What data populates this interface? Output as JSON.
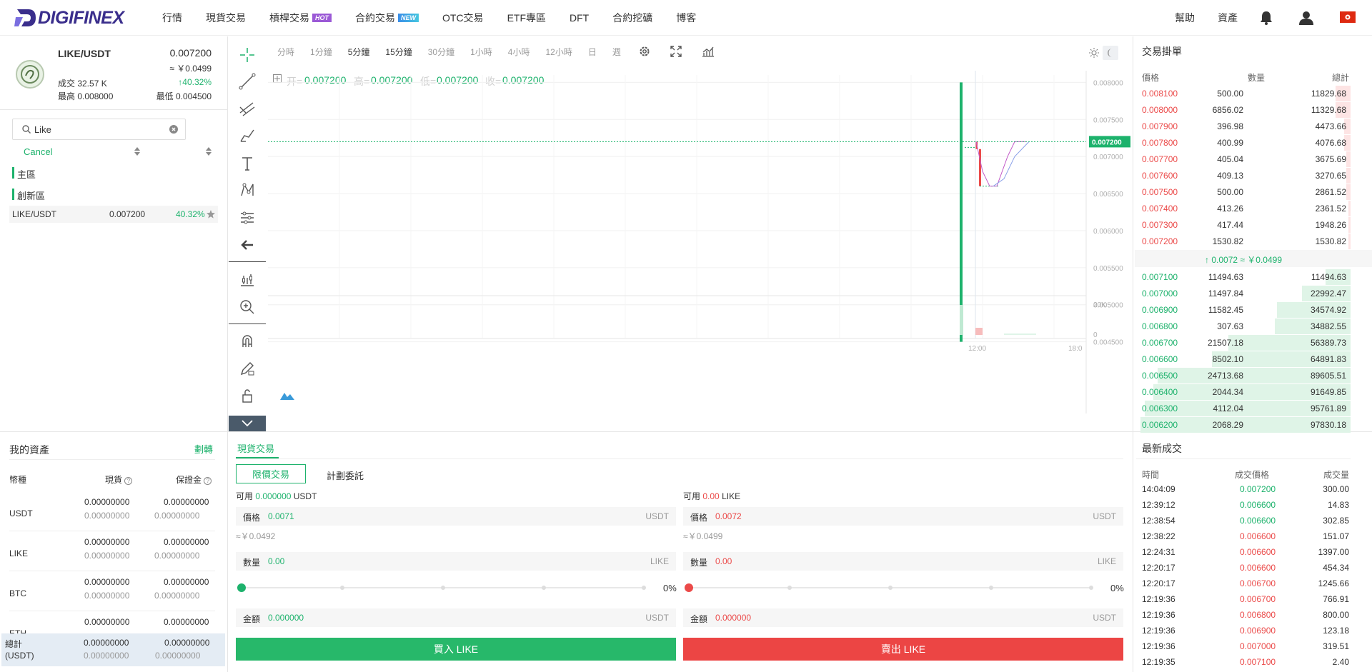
{
  "brand": {
    "name": "DIGIFINEX"
  },
  "nav": {
    "items": [
      {
        "label": "行情"
      },
      {
        "label": "現貨交易"
      },
      {
        "label": "槓桿交易",
        "badge": "HOT"
      },
      {
        "label": "合約交易",
        "badge": "NEW"
      },
      {
        "label": "OTC交易"
      },
      {
        "label": "ETF專區"
      },
      {
        "label": "DFT"
      },
      {
        "label": "合約挖礦"
      },
      {
        "label": "博客"
      }
    ],
    "right": {
      "help": "幫助",
      "assets": "資產"
    }
  },
  "pair": {
    "name": "LIKE/USDT",
    "price": "0.007200",
    "cny": "≈ ￥0.0499",
    "volume": "成交 32.57 K",
    "change": "40.32%",
    "high": "最高 0.008000",
    "low": "最低 0.004500"
  },
  "search": {
    "value": "Like",
    "cancel": "Cancel"
  },
  "zones": {
    "main": "主區",
    "innovation": "創新區"
  },
  "pairs_list": [
    {
      "pair": "LIKE/USDT",
      "price": "0.007200",
      "change": "40.32%"
    }
  ],
  "timeframes": [
    "分時",
    "1分鐘",
    "5分鐘",
    "15分鐘",
    "30分鐘",
    "1小時",
    "4小時",
    "12小時",
    "日",
    "週"
  ],
  "active_timeframe": "15分鐘",
  "ohlc": {
    "open_label": "开=",
    "open": "0.007200",
    "high_label": "高=",
    "high": "0.007200",
    "low_label": "低=",
    "low": "0.007200",
    "close_label": "收=",
    "close": "0.007200"
  },
  "chart_data": {
    "type": "candlestick",
    "price_axis": [
      "0.008000",
      "0.007500",
      "0.007000",
      "0.006500",
      "0.006000",
      "0.005500",
      "0.005000",
      "0.004500"
    ],
    "last_price_label": "0.007200",
    "volume_axis": [
      "20K",
      "0"
    ],
    "time_axis": [
      "12:00",
      "18:0"
    ],
    "ylim": [
      0.0044,
      0.0081
    ]
  },
  "orderbook": {
    "title": "交易掛單",
    "headers": {
      "price": "價格",
      "amount": "數量",
      "total": "總計"
    },
    "asks": [
      {
        "price": "0.008100",
        "amount": "500.00",
        "total": "11829.68",
        "depth": 0.07
      },
      {
        "price": "0.008000",
        "amount": "6856.02",
        "total": "11329.68",
        "depth": 0.07
      },
      {
        "price": "0.007900",
        "amount": "396.98",
        "total": "4473.66",
        "depth": 0.03
      },
      {
        "price": "0.007800",
        "amount": "400.99",
        "total": "4076.68",
        "depth": 0.03
      },
      {
        "price": "0.007700",
        "amount": "405.04",
        "total": "3675.69",
        "depth": 0.02
      },
      {
        "price": "0.007600",
        "amount": "409.13",
        "total": "3270.65",
        "depth": 0.02
      },
      {
        "price": "0.007500",
        "amount": "500.00",
        "total": "2861.52",
        "depth": 0.02
      },
      {
        "price": "0.007400",
        "amount": "413.26",
        "total": "2361.52",
        "depth": 0.01
      },
      {
        "price": "0.007300",
        "amount": "417.44",
        "total": "1948.26",
        "depth": 0.01
      },
      {
        "price": "0.007200",
        "amount": "1530.82",
        "total": "1530.82",
        "depth": 0.01
      }
    ],
    "mid": "0.0072 ≈ ￥0.0499",
    "bids": [
      {
        "price": "0.007100",
        "amount": "11494.63",
        "total": "11494.63",
        "depth": 0.12
      },
      {
        "price": "0.007000",
        "amount": "11497.84",
        "total": "22992.47",
        "depth": 0.23
      },
      {
        "price": "0.006900",
        "amount": "11582.45",
        "total": "34574.92",
        "depth": 0.35
      },
      {
        "price": "0.006800",
        "amount": "307.63",
        "total": "34882.55",
        "depth": 0.36
      },
      {
        "price": "0.006700",
        "amount": "21507.18",
        "total": "56389.73",
        "depth": 0.58
      },
      {
        "price": "0.006600",
        "amount": "8502.10",
        "total": "64891.83",
        "depth": 0.66
      },
      {
        "price": "0.006500",
        "amount": "24713.68",
        "total": "89605.51",
        "depth": 0.92
      },
      {
        "price": "0.006400",
        "amount": "2044.34",
        "total": "91649.85",
        "depth": 0.94
      },
      {
        "price": "0.006300",
        "amount": "4112.04",
        "total": "95761.89",
        "depth": 0.98
      },
      {
        "price": "0.006200",
        "amount": "2068.29",
        "total": "97830.18",
        "depth": 1.0
      }
    ]
  },
  "assets": {
    "title": "我的資產",
    "transfer": "劃轉",
    "headers": {
      "currency": "幣種",
      "spot": "現貨",
      "margin": "保證金"
    },
    "rows": [
      {
        "coin": "USDT",
        "spot1": "0.00000000",
        "spot2": "0.00000000",
        "m1": "0.00000000",
        "m2": "0.00000000"
      },
      {
        "coin": "LIKE",
        "spot1": "0.00000000",
        "spot2": "0.00000000",
        "m1": "0.00000000",
        "m2": "0.00000000"
      },
      {
        "coin": "BTC",
        "spot1": "0.00000000",
        "spot2": "0.00000000",
        "m1": "0.00000000",
        "m2": "0.00000000"
      },
      {
        "coin": "ETH",
        "spot1": "0.00000000",
        "spot2": "",
        "m1": "0.00000000",
        "m2": ""
      }
    ],
    "total": {
      "label": "總計",
      "unit": "(USDT)",
      "spot1": "0.00000000",
      "spot2": "0.00000000",
      "m1": "0.00000000",
      "m2": "0.00000000"
    }
  },
  "trade": {
    "tab": "現貨交易",
    "limit": "限價交易",
    "plan": "計劃委託",
    "buy": {
      "avail_label": "可用",
      "avail": "0.000000",
      "avail_unit": "USDT",
      "price_label": "價格",
      "price": "0.0071",
      "price_unit": "USDT",
      "cny": "≈￥0.0492",
      "amount_label": "數量",
      "amount": "0.00",
      "amount_unit": "LIKE",
      "percent": "0%",
      "total_label": "金額",
      "total": "0.000000",
      "total_unit": "USDT",
      "button": "買入 LIKE"
    },
    "sell": {
      "avail_label": "可用",
      "avail": "0.00",
      "avail_unit": "LIKE",
      "price_label": "價格",
      "price": "0.0072",
      "price_unit": "USDT",
      "cny": "≈￥0.0499",
      "amount_label": "數量",
      "amount": "0.00",
      "amount_unit": "LIKE",
      "percent": "0%",
      "total_label": "金額",
      "total": "0.000000",
      "total_unit": "USDT",
      "button": "賣出 LIKE"
    }
  },
  "trades": {
    "title": "最新成交",
    "headers": {
      "time": "時間",
      "price": "成交價格",
      "amount": "成交量"
    },
    "rows": [
      {
        "time": "14:04:09",
        "price": "0.007200",
        "amount": "300.00",
        "side": "buy"
      },
      {
        "time": "12:39:12",
        "price": "0.006600",
        "amount": "14.83",
        "side": "buy"
      },
      {
        "time": "12:38:54",
        "price": "0.006600",
        "amount": "302.85",
        "side": "buy"
      },
      {
        "time": "12:38:22",
        "price": "0.006600",
        "amount": "151.07",
        "side": "sell"
      },
      {
        "time": "12:24:31",
        "price": "0.006600",
        "amount": "1397.00",
        "side": "sell"
      },
      {
        "time": "12:20:17",
        "price": "0.006600",
        "amount": "454.34",
        "side": "sell"
      },
      {
        "time": "12:20:17",
        "price": "0.006700",
        "amount": "1245.66",
        "side": "sell"
      },
      {
        "time": "12:19:36",
        "price": "0.006700",
        "amount": "766.91",
        "side": "sell"
      },
      {
        "time": "12:19:36",
        "price": "0.006800",
        "amount": "800.00",
        "side": "sell"
      },
      {
        "time": "12:19:36",
        "price": "0.006900",
        "amount": "123.18",
        "side": "sell"
      },
      {
        "time": "12:19:36",
        "price": "0.007000",
        "amount": "319.51",
        "side": "sell"
      },
      {
        "time": "12:19:35",
        "price": "0.007100",
        "amount": "2.40",
        "side": "sell"
      }
    ]
  },
  "colors": {
    "green": "#1db26c",
    "red": "#eb4a49",
    "accent": "#27b86a"
  }
}
